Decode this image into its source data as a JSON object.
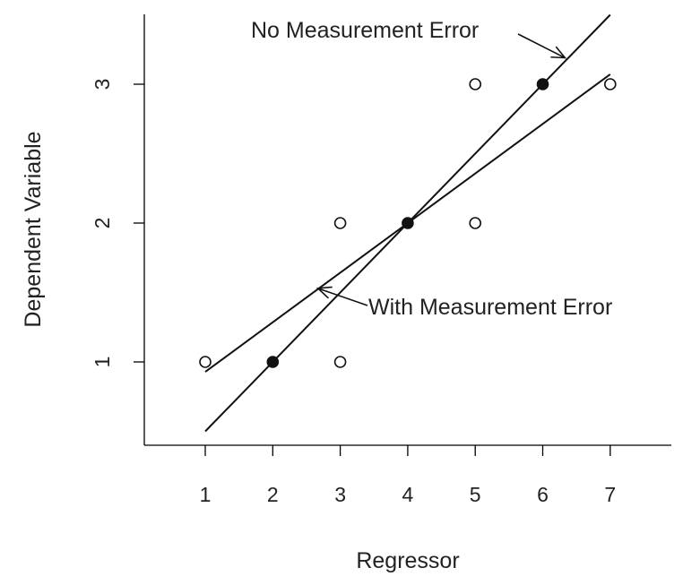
{
  "chart_data": {
    "type": "scatter",
    "xlabel": "Regressor",
    "ylabel": "Dependent Variable",
    "xlim": [
      0.25,
      7.9
    ],
    "ylim": [
      0.41,
      3.49
    ],
    "x_ticks": [
      1,
      2,
      3,
      4,
      5,
      6,
      7
    ],
    "y_ticks": [
      1,
      2,
      3
    ],
    "grid": false,
    "series": [
      {
        "marker": "open-circle",
        "points": [
          {
            "x": 1,
            "y": 1
          },
          {
            "x": 3,
            "y": 2
          },
          {
            "x": 3,
            "y": 1
          },
          {
            "x": 5,
            "y": 3
          },
          {
            "x": 5,
            "y": 2
          },
          {
            "x": 7,
            "y": 3
          }
        ]
      },
      {
        "marker": "filled-circle",
        "points": [
          {
            "x": 2,
            "y": 1
          },
          {
            "x": 4,
            "y": 2
          },
          {
            "x": 6,
            "y": 3
          }
        ]
      }
    ],
    "lines": [
      {
        "label": "No Measurement Error",
        "intercept": 0,
        "slope": 0.5,
        "x_range": [
          1,
          7
        ]
      },
      {
        "label": "With Measurement Error",
        "intercept": 0.5714,
        "slope": 0.3571,
        "x_range": [
          1,
          7
        ]
      }
    ],
    "annotations": [
      {
        "text": "No Measurement Error",
        "arrow_to": {
          "x": 6.33,
          "y": 3.19
        }
      },
      {
        "text": "With Measurement Error",
        "arrow_to": {
          "x": 2.67,
          "y": 1.53
        }
      }
    ]
  }
}
